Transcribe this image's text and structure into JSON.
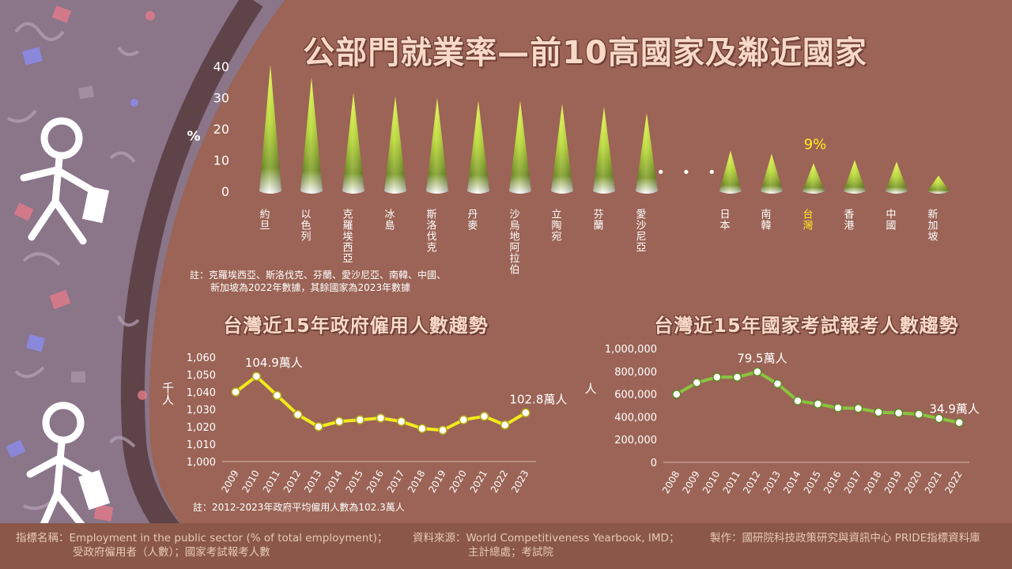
{
  "title": "公部門就業率—前10高國家及鄰近國家",
  "note_top": [
    "註：克羅埃西亞、斯洛伐克、芬蘭、愛沙尼亞、南韓、中國、",
    "新加坡為2022年數據，其餘國家為2023年數據"
  ],
  "note_gov": "註：2012-2023年政府平均僱用人數為102.3萬人",
  "footer": {
    "indicator_label": "指標名稱：",
    "indicator_line1": "Employment in the public sector (% of total employment)；",
    "indicator_line2": "受政府僱用者（人數）；國家考試報考人數",
    "source_label": "資料來源：",
    "source_line1": "World Competitiveness Yearbook, IMD；",
    "source_line2": "主計總處；考試院",
    "maker_label": "製作：",
    "maker_text": "國研院科技政策研究與資訊中心 PRIDE指標資料庫"
  },
  "colors": {
    "background": "#9b6456",
    "sidebar": "#8a7589",
    "cone_top": "#d6ef3a",
    "highlight": "#ffee22",
    "line_gov": "#f2ea1c",
    "line_exam": "#8ac43f"
  },
  "chart_data": [
    {
      "type": "bar",
      "title": "公部門就業率—前10高國家及鄰近國家",
      "ylabel": "%",
      "ylim": [
        0,
        40
      ],
      "yticks": [
        0,
        10,
        20,
        30,
        40
      ],
      "gap_marker": "• • •",
      "categories": [
        "約旦",
        "以色列",
        "克羅埃西亞",
        "冰島",
        "斯洛伐克",
        "丹麥",
        "沙烏地阿拉伯",
        "立陶宛",
        "芬蘭",
        "愛沙尼亞",
        "日本",
        "南韓",
        "台灣",
        "香港",
        "中國",
        "新加坡"
      ],
      "values": [
        40.5,
        36.5,
        31.5,
        30.5,
        30,
        29,
        29,
        28,
        27,
        25,
        13,
        12,
        9,
        10,
        9.5,
        5
      ],
      "highlight": "台灣",
      "highlight_label": "9%"
    },
    {
      "type": "line",
      "title": "台灣近15年政府僱用人數趨勢",
      "ylabel": "千人",
      "x": [
        "2009",
        "2010",
        "2011",
        "2012",
        "2013",
        "2014",
        "2015",
        "2016",
        "2017",
        "2018",
        "2019",
        "2020",
        "2021",
        "2022",
        "2023"
      ],
      "values": [
        1040,
        1049,
        1038,
        1027,
        1020,
        1023,
        1024,
        1025,
        1023,
        1019,
        1018,
        1024,
        1026,
        1021,
        1028
      ],
      "ylim": [
        1000,
        1060
      ],
      "yticks": [
        "1,000",
        "1,010",
        "1,020",
        "1,030",
        "1,040",
        "1,050",
        "1,060"
      ],
      "annotations": [
        {
          "x": "2010",
          "text": "104.9萬人"
        },
        {
          "x": "2023",
          "text": "102.8萬人"
        }
      ]
    },
    {
      "type": "line",
      "title": "台灣近15年國家考試報考人數趨勢",
      "ylabel": "人",
      "x": [
        "2008",
        "2009",
        "2010",
        "2011",
        "2012",
        "2013",
        "2014",
        "2015",
        "2016",
        "2017",
        "2018",
        "2019",
        "2020",
        "2021",
        "2022"
      ],
      "values": [
        598000,
        700000,
        748000,
        748000,
        795000,
        690000,
        540000,
        512000,
        478000,
        474000,
        440000,
        433000,
        423000,
        385000,
        349000
      ],
      "ylim": [
        0,
        1000000
      ],
      "yticks": [
        "0",
        "200,000",
        "400,000",
        "600,000",
        "800,000",
        "1,000,000"
      ],
      "annotations": [
        {
          "x": "2012",
          "text": "79.5萬人"
        },
        {
          "x": "2022",
          "text": "34.9萬人"
        }
      ]
    }
  ]
}
